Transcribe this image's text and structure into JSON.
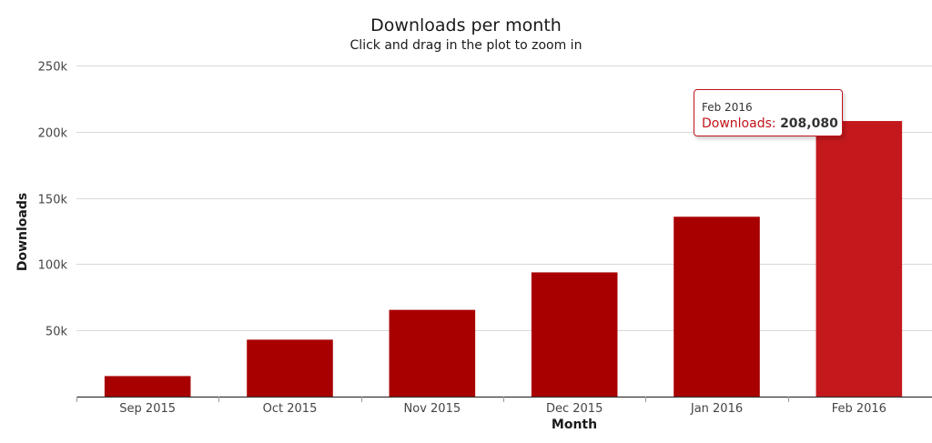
{
  "chart_data": {
    "type": "bar",
    "title": "Downloads per month",
    "subtitle": "Click and drag in the plot to zoom in",
    "xlabel": "Month",
    "ylabel": "Downloads",
    "categories": [
      "Sep 2015",
      "Oct 2015",
      "Nov 2015",
      "Dec 2015",
      "Jan 2016",
      "Feb 2016"
    ],
    "series": [
      {
        "name": "Downloads",
        "values": [
          15500,
          43000,
          65500,
          93800,
          135800,
          208080
        ]
      }
    ],
    "ylim": [
      0,
      250000
    ],
    "yticks": [
      50000,
      100000,
      150000,
      200000,
      250000
    ],
    "ytick_labels": [
      "50k",
      "100k",
      "150k",
      "200k",
      "250k"
    ],
    "grid": true,
    "legend": "none",
    "colors": {
      "bar": "#a80000",
      "bar_hover": "#c4191c",
      "grid": "#d8d8d8",
      "axis": "#333333"
    },
    "hovered_index": 5
  },
  "tooltip": {
    "date": "Feb 2016",
    "series_label": "Downloads",
    "separator": ": ",
    "value": "208,080"
  }
}
